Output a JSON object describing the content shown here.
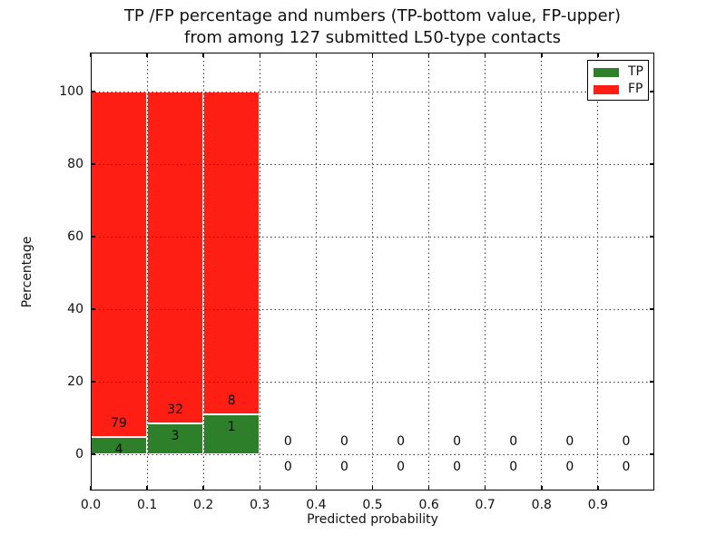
{
  "title": {
    "line1": "TP /FP percentage and numbers (TP-bottom value, FP-upper)",
    "line2": "from among 127 submitted L50-type contacts"
  },
  "axes": {
    "xlabel": "Predicted probability",
    "ylabel": "Percentage",
    "xticks": [
      "0.0",
      "0.1",
      "0.2",
      "0.3",
      "0.4",
      "0.5",
      "0.6",
      "0.7",
      "0.8",
      "0.9"
    ],
    "yticks": [
      0,
      20,
      40,
      60,
      80,
      100
    ],
    "xlim": [
      0.0,
      1.0
    ],
    "ylim": [
      -10,
      110.75
    ],
    "grid": "dotted"
  },
  "legend": {
    "position": "upper right",
    "items": [
      {
        "label": "TP",
        "color": "#2d7f2a"
      },
      {
        "label": "FP",
        "color": "#ff1e14"
      }
    ]
  },
  "chart_data": {
    "type": "bar",
    "stacked": true,
    "normalized_to_percent": 100,
    "title": "TP /FP percentage and numbers (TP-bottom value, FP-upper) from among 127 submitted L50-type contacts",
    "xlabel": "Predicted probability",
    "ylabel": "Percentage",
    "total_contacts": 127,
    "bin_start": 0.0,
    "bin_width": 0.1,
    "categories": [
      "0.0-0.1",
      "0.1-0.2",
      "0.2-0.3",
      "0.3-0.4",
      "0.4-0.5",
      "0.5-0.6",
      "0.6-0.7",
      "0.7-0.8",
      "0.8-0.9",
      "0.9-1.0"
    ],
    "series": [
      {
        "name": "TP",
        "color": "#2d7f2a",
        "counts": [
          4,
          3,
          1,
          0,
          0,
          0,
          0,
          0,
          0,
          0
        ]
      },
      {
        "name": "FP",
        "color": "#ff1e14",
        "counts": [
          79,
          32,
          8,
          0,
          0,
          0,
          0,
          0,
          0,
          0
        ]
      }
    ],
    "tp_percent_of_bin": [
      4.82,
      8.57,
      11.11,
      0,
      0,
      0,
      0,
      0,
      0,
      0
    ],
    "label_offset_percent": 3.6
  }
}
